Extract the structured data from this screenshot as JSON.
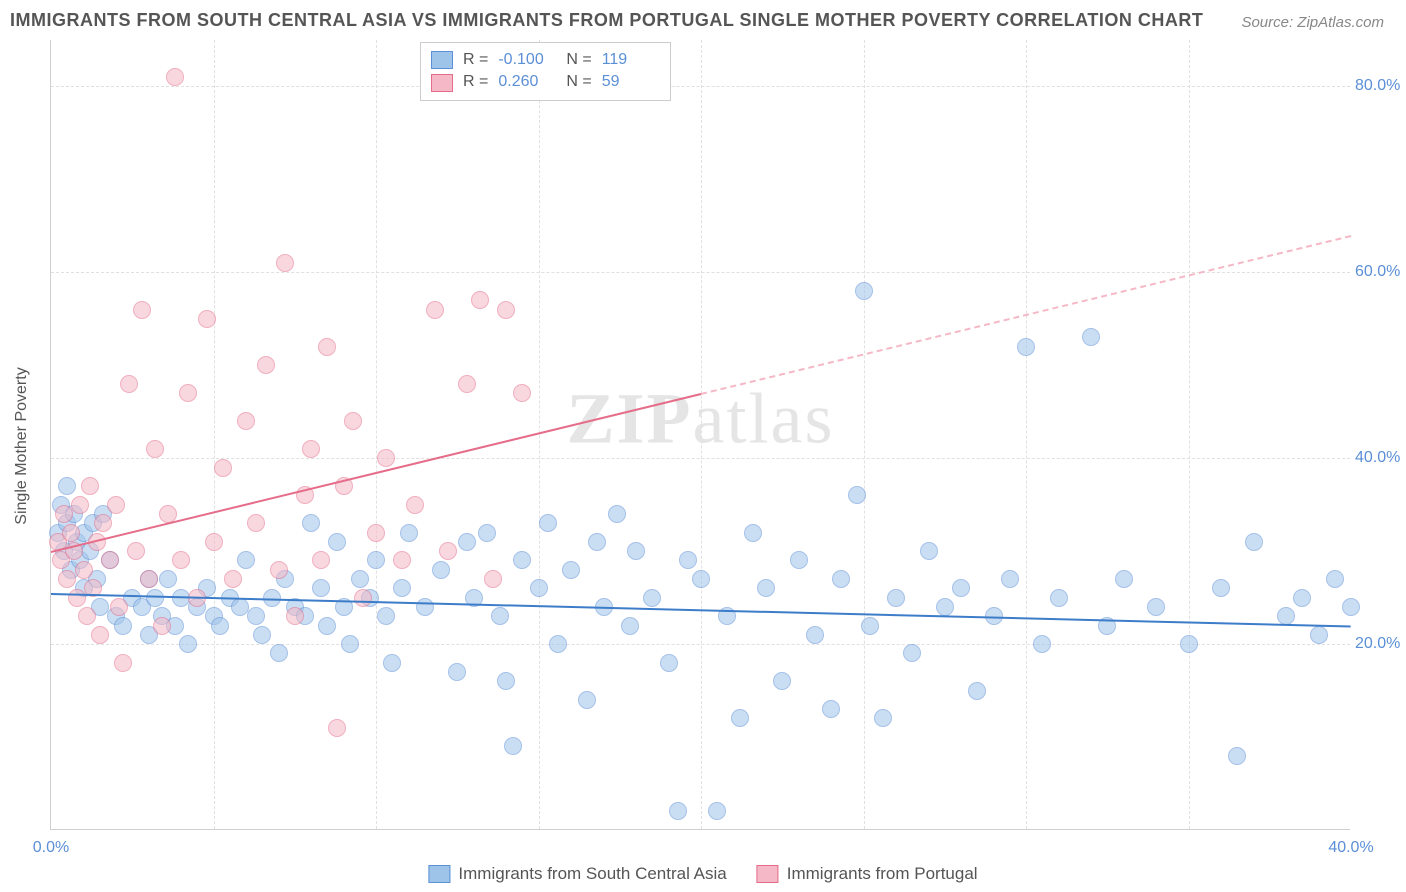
{
  "title": "IMMIGRANTS FROM SOUTH CENTRAL ASIA VS IMMIGRANTS FROM PORTUGAL SINGLE MOTHER POVERTY CORRELATION CHART",
  "source": "Source: ZipAtlas.com",
  "watermark_main": "ZIP",
  "watermark_sub": "atlas",
  "ylabel": "Single Mother Poverty",
  "chart": {
    "type": "scatter",
    "background_color": "#ffffff",
    "grid_color": "#e0e0e0",
    "axis_color": "#d0d0d0",
    "tick_label_color": "#5b8fd6",
    "tick_fontsize": 16,
    "title_fontsize": 18,
    "title_color": "#555555",
    "xlim": [
      0,
      40
    ],
    "ylim": [
      0,
      85
    ],
    "yticks": [
      {
        "v": 20,
        "label": "20.0%"
      },
      {
        "v": 40,
        "label": "40.0%"
      },
      {
        "v": 60,
        "label": "60.0%"
      },
      {
        "v": 80,
        "label": "80.0%"
      }
    ],
    "xticks": [
      {
        "v": 0,
        "label": "0.0%"
      },
      {
        "v": 40,
        "label": "40.0%"
      }
    ],
    "xgrid": [
      5,
      10,
      15,
      20,
      25,
      30,
      35
    ],
    "marker_size": 18,
    "marker_opacity": 0.55,
    "series": [
      {
        "name": "Immigrants from South Central Asia",
        "fill": "#9fc4ea",
        "stroke": "#5b8fd6",
        "R_label": "R =",
        "R": "-0.100",
        "N_label": "N =",
        "N": "119",
        "trend": {
          "x0": 0,
          "y0": 25.5,
          "x1": 40,
          "y1": 22.0,
          "color": "#3d7cc9",
          "width": 2,
          "style": "solid"
        },
        "points": [
          [
            0.2,
            32
          ],
          [
            0.3,
            35
          ],
          [
            0.4,
            30
          ],
          [
            0.5,
            33
          ],
          [
            0.5,
            37
          ],
          [
            0.6,
            28
          ],
          [
            0.7,
            34
          ],
          [
            0.8,
            31
          ],
          [
            0.9,
            29
          ],
          [
            1.0,
            32
          ],
          [
            1.0,
            26
          ],
          [
            1.2,
            30
          ],
          [
            1.3,
            33
          ],
          [
            1.4,
            27
          ],
          [
            1.5,
            24
          ],
          [
            2.0,
            23
          ],
          [
            1.6,
            34
          ],
          [
            1.8,
            29
          ],
          [
            2.2,
            22
          ],
          [
            2.5,
            25
          ],
          [
            2.8,
            24
          ],
          [
            3.0,
            27
          ],
          [
            3.0,
            21
          ],
          [
            3.2,
            25
          ],
          [
            3.4,
            23
          ],
          [
            3.6,
            27
          ],
          [
            3.8,
            22
          ],
          [
            4.0,
            25
          ],
          [
            4.2,
            20
          ],
          [
            4.5,
            24
          ],
          [
            4.8,
            26
          ],
          [
            5.0,
            23
          ],
          [
            5.2,
            22
          ],
          [
            5.5,
            25
          ],
          [
            5.8,
            24
          ],
          [
            6.0,
            29
          ],
          [
            6.3,
            23
          ],
          [
            6.5,
            21
          ],
          [
            6.8,
            25
          ],
          [
            7.0,
            19
          ],
          [
            7.2,
            27
          ],
          [
            7.5,
            24
          ],
          [
            7.8,
            23
          ],
          [
            8.0,
            33
          ],
          [
            8.3,
            26
          ],
          [
            8.5,
            22
          ],
          [
            8.8,
            31
          ],
          [
            9.0,
            24
          ],
          [
            9.2,
            20
          ],
          [
            9.5,
            27
          ],
          [
            9.8,
            25
          ],
          [
            10.0,
            29
          ],
          [
            10.3,
            23
          ],
          [
            10.5,
            18
          ],
          [
            10.8,
            26
          ],
          [
            11.0,
            32
          ],
          [
            11.5,
            24
          ],
          [
            12.0,
            28
          ],
          [
            12.5,
            17
          ],
          [
            12.8,
            31
          ],
          [
            13.0,
            25
          ],
          [
            13.4,
            32
          ],
          [
            13.8,
            23
          ],
          [
            14.0,
            16
          ],
          [
            14.2,
            9
          ],
          [
            14.5,
            29
          ],
          [
            15.0,
            26
          ],
          [
            15.3,
            33
          ],
          [
            15.6,
            20
          ],
          [
            16.0,
            28
          ],
          [
            16.5,
            14
          ],
          [
            16.8,
            31
          ],
          [
            17.0,
            24
          ],
          [
            17.4,
            34
          ],
          [
            17.8,
            22
          ],
          [
            18.0,
            30
          ],
          [
            18.5,
            25
          ],
          [
            19.0,
            18
          ],
          [
            19.3,
            2
          ],
          [
            19.6,
            29
          ],
          [
            20.0,
            27
          ],
          [
            20.5,
            2
          ],
          [
            20.8,
            23
          ],
          [
            21.2,
            12
          ],
          [
            21.6,
            32
          ],
          [
            22.0,
            26
          ],
          [
            22.5,
            16
          ],
          [
            23.0,
            29
          ],
          [
            23.5,
            21
          ],
          [
            24.0,
            13
          ],
          [
            24.3,
            27
          ],
          [
            24.8,
            36
          ],
          [
            25.0,
            58
          ],
          [
            25.2,
            22
          ],
          [
            25.6,
            12
          ],
          [
            26.0,
            25
          ],
          [
            26.5,
            19
          ],
          [
            27.0,
            30
          ],
          [
            27.5,
            24
          ],
          [
            28.0,
            26
          ],
          [
            28.5,
            15
          ],
          [
            29.0,
            23
          ],
          [
            29.5,
            27
          ],
          [
            30.0,
            52
          ],
          [
            30.5,
            20
          ],
          [
            31.0,
            25
          ],
          [
            32.0,
            53
          ],
          [
            32.5,
            22
          ],
          [
            33.0,
            27
          ],
          [
            34.0,
            24
          ],
          [
            35.0,
            20
          ],
          [
            36.0,
            26
          ],
          [
            36.5,
            8
          ],
          [
            37.0,
            31
          ],
          [
            38.0,
            23
          ],
          [
            38.5,
            25
          ],
          [
            39.0,
            21
          ],
          [
            39.5,
            27
          ],
          [
            40.0,
            24
          ]
        ]
      },
      {
        "name": "Immigrants from Portugal",
        "fill": "#f5b8c6",
        "stroke": "#e56d8a",
        "R_label": "R =",
        "R": "0.260",
        "N_label": "N =",
        "N": "59",
        "trend_solid": {
          "x0": 0,
          "y0": 30,
          "x1": 20,
          "y1": 47,
          "color": "#e56d8a",
          "width": 2
        },
        "trend_dashed": {
          "x0": 20,
          "y0": 47,
          "x1": 40,
          "y1": 64,
          "color": "#f5b8c6",
          "width": 2
        },
        "points": [
          [
            0.2,
            31
          ],
          [
            0.3,
            29
          ],
          [
            0.4,
            34
          ],
          [
            0.5,
            27
          ],
          [
            0.6,
            32
          ],
          [
            0.7,
            30
          ],
          [
            0.8,
            25
          ],
          [
            0.9,
            35
          ],
          [
            1.0,
            28
          ],
          [
            1.1,
            23
          ],
          [
            1.2,
            37
          ],
          [
            1.3,
            26
          ],
          [
            1.4,
            31
          ],
          [
            1.5,
            21
          ],
          [
            1.6,
            33
          ],
          [
            1.8,
            29
          ],
          [
            2.0,
            35
          ],
          [
            2.1,
            24
          ],
          [
            2.2,
            18
          ],
          [
            2.4,
            48
          ],
          [
            2.6,
            30
          ],
          [
            2.8,
            56
          ],
          [
            3.0,
            27
          ],
          [
            3.2,
            41
          ],
          [
            3.4,
            22
          ],
          [
            3.6,
            34
          ],
          [
            3.8,
            81
          ],
          [
            4.0,
            29
          ],
          [
            4.2,
            47
          ],
          [
            4.5,
            25
          ],
          [
            4.8,
            55
          ],
          [
            5.0,
            31
          ],
          [
            5.3,
            39
          ],
          [
            5.6,
            27
          ],
          [
            6.0,
            44
          ],
          [
            6.3,
            33
          ],
          [
            6.6,
            50
          ],
          [
            7.0,
            28
          ],
          [
            7.2,
            61
          ],
          [
            7.5,
            23
          ],
          [
            7.8,
            36
          ],
          [
            8.0,
            41
          ],
          [
            8.3,
            29
          ],
          [
            8.5,
            52
          ],
          [
            8.8,
            11
          ],
          [
            9.0,
            37
          ],
          [
            9.3,
            44
          ],
          [
            9.6,
            25
          ],
          [
            10.0,
            32
          ],
          [
            10.3,
            40
          ],
          [
            10.8,
            29
          ],
          [
            11.2,
            35
          ],
          [
            11.8,
            56
          ],
          [
            12.2,
            30
          ],
          [
            12.8,
            48
          ],
          [
            13.2,
            57
          ],
          [
            13.6,
            27
          ],
          [
            14.0,
            56
          ],
          [
            14.5,
            47
          ]
        ]
      }
    ]
  },
  "bottom_legend": [
    {
      "label": "Immigrants from South Central Asia",
      "fill": "#9fc4ea",
      "stroke": "#5b8fd6"
    },
    {
      "label": "Immigrants from Portugal",
      "fill": "#f5b8c6",
      "stroke": "#e56d8a"
    }
  ]
}
